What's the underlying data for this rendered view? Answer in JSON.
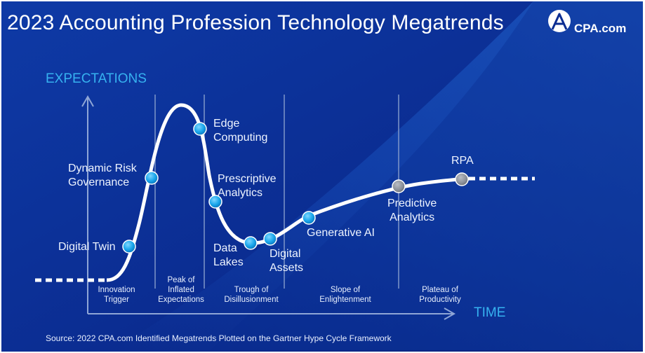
{
  "title": "2023 Accounting Profession Technology Megatrends",
  "logo": {
    "text": "CPA.com",
    "icon": "cpa-logo-icon"
  },
  "axes": {
    "y_label": "EXPECTATIONS",
    "x_label": "TIME"
  },
  "phases": [
    {
      "label": "Innovation\nTrigger"
    },
    {
      "label": "Peak of\nInflated\nExpectations"
    },
    {
      "label": "Trough of\nDisillusionment"
    },
    {
      "label": "Slope of\nEnlightenment"
    },
    {
      "label": "Plateau of\nProductivity"
    }
  ],
  "technologies": [
    {
      "label": "Digital Twin",
      "marker": "blue"
    },
    {
      "label": "Dynamic Risk\nGovernance",
      "marker": "blue"
    },
    {
      "label": "Edge\nComputing",
      "marker": "blue"
    },
    {
      "label": "Prescriptive\nAnalytics",
      "marker": "blue"
    },
    {
      "label": "Data\nLakes",
      "marker": "blue"
    },
    {
      "label": "Digital\nAssets",
      "marker": "blue"
    },
    {
      "label": "Generative AI",
      "marker": "blue"
    },
    {
      "label": "Predictive\nAnalytics",
      "marker": "gray"
    },
    {
      "label": "RPA",
      "marker": "gray"
    }
  ],
  "source": "Source: 2022 CPA.com Identified Megatrends Plotted on the Gartner Hype Cycle Framework",
  "colors": {
    "background_dark": "#0a2a8f",
    "background_light": "#1650c4",
    "accent_blue": "#36b2f0",
    "marker_blue": "#1aa7ec",
    "marker_gray": "#8a8f98",
    "curve": "#ffffff"
  }
}
